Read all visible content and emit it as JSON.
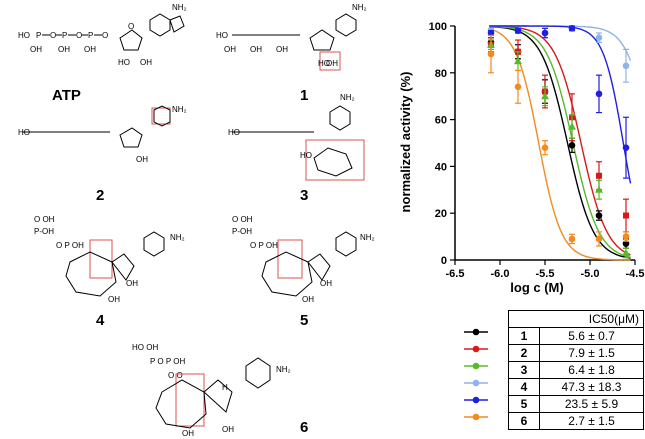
{
  "structures": [
    {
      "label": "ATP"
    },
    {
      "label": "1"
    },
    {
      "label": "2"
    },
    {
      "label": "3"
    },
    {
      "label": "4"
    },
    {
      "label": "5"
    },
    {
      "label": "6"
    }
  ],
  "atoms": {
    "oh": "OH",
    "ho": "HO",
    "o": "O",
    "p": "P",
    "n": "N",
    "nh2": "NH2",
    "h": "H"
  },
  "chart_data": {
    "type": "scatter",
    "xlabel": "log c (M)",
    "ylabel": "normalized activity (%)",
    "xlim": [
      -6.5,
      -4.5
    ],
    "ylim": [
      0,
      100
    ],
    "xticks": [
      "-6.5",
      "-6.0",
      "-5.5",
      "-5.0",
      "-4.5"
    ],
    "yticks": [
      "0",
      "20",
      "40",
      "60",
      "80",
      "100"
    ],
    "x": [
      -6.1,
      -5.8,
      -5.5,
      -5.2,
      -4.9,
      -4.6
    ],
    "series": [
      {
        "name": "1",
        "color": "#000000",
        "ic50": "5.6 ± 0.7",
        "y": [
          93,
          89,
          72,
          49,
          19,
          7
        ],
        "err": [
          2,
          3,
          5,
          3,
          2,
          2
        ]
      },
      {
        "name": "2",
        "color": "#d7191c",
        "ic50": "7.9 ± 1.5",
        "y": [
          92,
          89,
          72,
          61,
          36,
          19
        ],
        "err": [
          3,
          5,
          7,
          10,
          6,
          7
        ]
      },
      {
        "name": "3",
        "color": "#5ab82b",
        "ic50": "6.4 ± 1.8",
        "y": [
          92,
          85,
          70,
          57,
          30,
          3
        ],
        "err": [
          2,
          4,
          4,
          5,
          4,
          2
        ]
      },
      {
        "name": "4",
        "color": "#8fb3e8",
        "ic50": "47.3 ± 18.3",
        "y": [
          98,
          98,
          97,
          99,
          95,
          83
        ],
        "err": [
          1,
          1,
          2,
          1,
          2,
          7
        ]
      },
      {
        "name": "5",
        "color": "#1f1fe0",
        "ic50": "23.5 ± 5.9",
        "y": [
          97,
          98,
          97,
          99,
          71,
          48
        ],
        "err": [
          1,
          1,
          2,
          1,
          8,
          13
        ]
      },
      {
        "name": "6",
        "color": "#f28a1e",
        "ic50": "2.7 ± 1.5",
        "y": [
          88,
          74,
          48,
          9,
          9,
          10
        ],
        "err": [
          8,
          7,
          3,
          2,
          3,
          2
        ]
      }
    ],
    "fits": [
      {
        "name": "1",
        "ic50_log": -5.25,
        "slope": 1.3
      },
      {
        "name": "2",
        "ic50_log": -5.1,
        "slope": 1.3
      },
      {
        "name": "3",
        "ic50_log": -5.19,
        "slope": 1.3
      },
      {
        "name": "4",
        "ic50_log": -4.33,
        "slope": 1.5
      },
      {
        "name": "5",
        "ic50_log": -4.63,
        "slope": 1.7
      },
      {
        "name": "6",
        "ic50_log": -5.57,
        "slope": 1.5
      }
    ],
    "table_header": "IC50(μM)"
  }
}
